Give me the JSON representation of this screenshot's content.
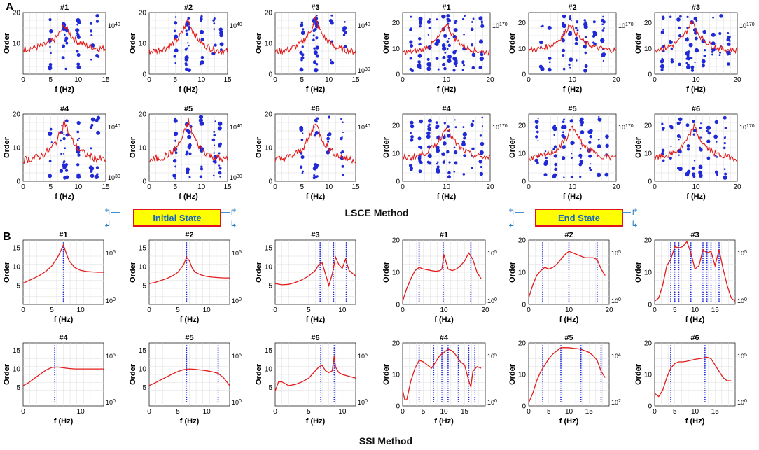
{
  "colors": {
    "model": "#1f2ad6",
    "spectrum": "#e21b1b",
    "grid": "#dcdcdc",
    "state_text": "#1565c0",
    "state_bg": "#ffff00",
    "state_border": "#e0141e"
  },
  "panel_labels": {
    "a": "A",
    "b": "B"
  },
  "methods": {
    "lsce": "LSCE Method",
    "ssi": "SSI Method"
  },
  "states": {
    "initial": "Initial State",
    "end": "End State"
  },
  "icons": [
    "arrow-up-left-icon",
    "arrow-down-left-icon",
    "arrow-up-right-icon",
    "arrow-down-right-icon"
  ],
  "chart_data": [
    {
      "id": "lsce-initial-1",
      "type": "stability-diagram",
      "title": "#1",
      "xlabel": "f (Hz)",
      "ylabel": "Order",
      "xlim": [
        0,
        15
      ],
      "ylim": [
        0,
        20
      ],
      "xticks": [
        0,
        5,
        10,
        15
      ],
      "yticks": [
        10,
        20
      ],
      "right_ticks": [
        "10^40"
      ],
      "peak_freq": 7.5,
      "base": 8,
      "peak": 16,
      "dot_columns": [
        5,
        7.4,
        7.8,
        10,
        12.5,
        13.5
      ]
    },
    {
      "id": "lsce-initial-2",
      "type": "stability-diagram",
      "title": "#2",
      "xlabel": "f (Hz)",
      "ylabel": "Order",
      "xlim": [
        0,
        15
      ],
      "ylim": [
        0,
        20
      ],
      "xticks": [
        0,
        5,
        10,
        15
      ],
      "yticks": [
        0,
        10,
        20
      ],
      "right_ticks": [
        "10^40"
      ],
      "peak_freq": 7.4,
      "base": 7,
      "peak": 18,
      "dot_columns": [
        5,
        7.2,
        7.6,
        10,
        12.5,
        13.8
      ]
    },
    {
      "id": "lsce-initial-3",
      "type": "stability-diagram",
      "title": "#3",
      "xlabel": "f (Hz)",
      "ylabel": "Order",
      "xlim": [
        0,
        15
      ],
      "ylim": [
        0,
        20
      ],
      "xticks": [
        0,
        5,
        10,
        15
      ],
      "yticks": [
        0,
        10,
        20
      ],
      "right_ticks": [
        "10^40",
        "10^30"
      ],
      "peak_freq": 7.5,
      "base": 7,
      "peak": 18,
      "dot_columns": [
        5,
        7.3,
        7.7,
        10.5,
        13
      ]
    },
    {
      "id": "lsce-end-1",
      "type": "stability-diagram",
      "title": "#1",
      "xlabel": "f (Hz)",
      "ylabel": "Order",
      "xlim": [
        0,
        20
      ],
      "ylim": [
        0,
        24
      ],
      "xticks": [
        0,
        10,
        20
      ],
      "yticks": [
        0,
        10,
        20
      ],
      "right_ticks": [
        "10^170"
      ],
      "peak_freq": 10,
      "base": 8,
      "peak": 20,
      "dot_columns": [
        2,
        4,
        6,
        8,
        9.5,
        10.5,
        12,
        14,
        16,
        18
      ]
    },
    {
      "id": "lsce-end-2",
      "type": "stability-diagram",
      "title": "#2",
      "xlabel": "f (Hz)",
      "ylabel": "Order",
      "xlim": [
        0,
        20
      ],
      "ylim": [
        0,
        24
      ],
      "xticks": [
        0,
        10,
        20
      ],
      "yticks": [
        0,
        10,
        20
      ],
      "right_ticks": [
        "10^170"
      ],
      "peak_freq": 9.5,
      "base": 9,
      "peak": 20,
      "dot_columns": [
        3,
        5,
        8,
        9.5,
        11,
        13,
        15,
        17
      ]
    },
    {
      "id": "lsce-end-3",
      "type": "stability-diagram",
      "title": "#3",
      "xlabel": "f (Hz)",
      "ylabel": "Order",
      "xlim": [
        0,
        20
      ],
      "ylim": [
        0,
        24
      ],
      "xticks": [
        0,
        10,
        20
      ],
      "yticks": [
        0,
        10,
        20
      ],
      "right_ticks": [
        "10^170"
      ],
      "peak_freq": 9,
      "base": 9,
      "peak": 21,
      "dot_columns": [
        2,
        4,
        6,
        8,
        9,
        10,
        12,
        14,
        16,
        18
      ]
    },
    {
      "id": "lsce-initial-4",
      "type": "stability-diagram",
      "title": "#4",
      "xlabel": "f (Hz)",
      "ylabel": "Order",
      "xlim": [
        0,
        15
      ],
      "ylim": [
        0,
        20
      ],
      "xticks": [
        0,
        5,
        10,
        15
      ],
      "yticks": [
        0,
        10,
        20
      ],
      "right_ticks": [
        "10^40",
        "10^30"
      ],
      "peak_freq": 7.5,
      "base": 6,
      "peak": 18,
      "dot_columns": [
        5,
        7,
        7.5,
        8,
        10,
        12.5,
        13.5
      ]
    },
    {
      "id": "lsce-initial-5",
      "type": "stability-diagram",
      "title": "#5",
      "xlabel": "f (Hz)",
      "ylabel": "Order",
      "xlim": [
        0,
        15
      ],
      "ylim": [
        0,
        20
      ],
      "xticks": [
        0,
        5,
        10,
        15
      ],
      "yticks": [
        0,
        10,
        20
      ],
      "right_ticks": [
        "10^40",
        "10^30"
      ],
      "peak_freq": 7.5,
      "base": 6,
      "peak": 18,
      "dot_columns": [
        5,
        7.3,
        7.8,
        10,
        12.5,
        13.5
      ]
    },
    {
      "id": "lsce-initial-6",
      "type": "stability-diagram",
      "title": "#6",
      "xlabel": "f (Hz)",
      "ylabel": "Order",
      "xlim": [
        0,
        15
      ],
      "ylim": [
        0,
        20
      ],
      "xticks": [
        0,
        5,
        10,
        15
      ],
      "yticks": [
        0,
        10,
        20
      ],
      "right_ticks": [
        "10^40"
      ],
      "peak_freq": 7.5,
      "base": 6,
      "peak": 18,
      "dot_columns": [
        5,
        7.3,
        7.7,
        10,
        12.5
      ]
    },
    {
      "id": "lsce-end-4",
      "type": "stability-diagram",
      "title": "#4",
      "xlabel": "f (Hz)",
      "ylabel": "Order",
      "xlim": [
        0,
        20
      ],
      "ylim": [
        0,
        24
      ],
      "xticks": [
        0,
        10,
        20
      ],
      "yticks": [
        0,
        10,
        20
      ],
      "right_ticks": [
        "10^170"
      ],
      "peak_freq": 10,
      "base": 8,
      "peak": 20,
      "dot_columns": [
        2,
        4,
        6,
        8,
        9.5,
        10.5,
        12,
        14,
        16,
        18
      ]
    },
    {
      "id": "lsce-end-5",
      "type": "stability-diagram",
      "title": "#5",
      "xlabel": "f (Hz)",
      "ylabel": "Order",
      "xlim": [
        0,
        20
      ],
      "ylim": [
        0,
        24
      ],
      "xticks": [
        0,
        10,
        20
      ],
      "yticks": [
        0,
        10,
        20
      ],
      "right_ticks": [
        "10^170"
      ],
      "peak_freq": 10,
      "base": 8,
      "peak": 20,
      "dot_columns": [
        2,
        4,
        6,
        8,
        10,
        12,
        14,
        16,
        18
      ]
    },
    {
      "id": "lsce-end-6",
      "type": "stability-diagram",
      "title": "#6",
      "xlabel": "f (Hz)",
      "ylabel": "Order",
      "xlim": [
        0,
        20
      ],
      "ylim": [
        0,
        24
      ],
      "xticks": [
        0,
        10,
        20
      ],
      "yticks": [
        0,
        10,
        20
      ],
      "right_ticks": [
        "10^170"
      ],
      "peak_freq": 9.5,
      "base": 8,
      "peak": 20,
      "dot_columns": [
        2,
        4,
        6,
        8,
        9.5,
        11,
        13,
        15,
        17
      ]
    },
    {
      "id": "ssi-initial-1",
      "type": "stability-diagram",
      "title": "#1",
      "xlabel": "f (Hz)",
      "ylabel": "Order",
      "xlim": [
        0,
        14
      ],
      "ylim": [
        0,
        17
      ],
      "xticks": [
        0,
        5,
        10
      ],
      "yticks": [
        5,
        10,
        15
      ],
      "right_ticks": [
        "10^5",
        "10^0"
      ],
      "curve_x": [
        0,
        1,
        2,
        3,
        4,
        5,
        6,
        6.5,
        7,
        7.5,
        8,
        9,
        10,
        11,
        12,
        13,
        14
      ],
      "curve_y": [
        5.6,
        6.3,
        7,
        7.8,
        8.8,
        10.2,
        12.5,
        14,
        15.7,
        13.5,
        11.5,
        9.7,
        9,
        8.7,
        8.6,
        8.5,
        8.5
      ],
      "dot_columns": [
        7
      ]
    },
    {
      "id": "ssi-initial-2",
      "type": "stability-diagram",
      "title": "#2",
      "xlabel": "f (Hz)",
      "ylabel": "Order",
      "xlim": [
        0,
        14
      ],
      "ylim": [
        0,
        17
      ],
      "xticks": [
        0,
        5,
        10
      ],
      "yticks": [
        5,
        10,
        15
      ],
      "right_ticks": [
        "10^5",
        "10^0"
      ],
      "curve_x": [
        0,
        1,
        2,
        3,
        4,
        5,
        6,
        6.5,
        7,
        7.5,
        8,
        9,
        10,
        11,
        12,
        13,
        14
      ],
      "curve_y": [
        5.5,
        5.8,
        6.3,
        6.8,
        7.5,
        8.5,
        10.5,
        12.5,
        11.5,
        9.5,
        8.5,
        7.8,
        7.4,
        7.2,
        7.1,
        7,
        7
      ],
      "dot_columns": [
        6.5
      ]
    },
    {
      "id": "ssi-initial-3",
      "type": "stability-diagram",
      "title": "#3",
      "xlabel": "f (Hz)",
      "ylabel": "Order",
      "xlim": [
        0,
        12
      ],
      "ylim": [
        0,
        17
      ],
      "xticks": [
        0,
        5,
        10
      ],
      "yticks": [
        5,
        10,
        15
      ],
      "right_ticks": [],
      "curve_x": [
        0,
        1,
        2,
        3,
        4,
        5,
        6,
        6.5,
        7,
        7.5,
        8,
        8.5,
        9,
        9.5,
        10,
        10.5,
        11,
        12
      ],
      "curve_y": [
        5.5,
        5.2,
        5.3,
        5.8,
        6.5,
        7.5,
        9,
        10.5,
        11,
        8,
        5,
        8,
        12.5,
        10.5,
        9.5,
        12,
        9,
        7.5
      ],
      "dot_columns": [
        6.7,
        8.7,
        10.6
      ]
    },
    {
      "id": "ssi-end-1",
      "type": "stability-diagram",
      "title": "#1",
      "xlabel": "f (Hz)",
      "ylabel": "Order",
      "xlim": [
        0,
        20
      ],
      "ylim": [
        0,
        20
      ],
      "xticks": [
        0,
        10,
        20
      ],
      "yticks": [
        0,
        10,
        20
      ],
      "right_ticks": [
        "10^5",
        "10^0"
      ],
      "curve_x": [
        0,
        1,
        2,
        3,
        4,
        5,
        7,
        8,
        9,
        9.5,
        10,
        11,
        12,
        13,
        14,
        15,
        16,
        17,
        18,
        19
      ],
      "curve_y": [
        1,
        5,
        8,
        10.5,
        11.5,
        11,
        10.5,
        10.3,
        10.5,
        11,
        15.5,
        11,
        10.5,
        11,
        12,
        13.5,
        16,
        14,
        10,
        8
      ],
      "dot_columns": [
        4,
        9.8,
        16.5
      ]
    },
    {
      "id": "ssi-end-2",
      "type": "stability-diagram",
      "title": "#2",
      "xlabel": "f (Hz)",
      "ylabel": "Order",
      "xlim": [
        0,
        20
      ],
      "ylim": [
        0,
        20
      ],
      "xticks": [
        0,
        10,
        20
      ],
      "yticks": [
        0,
        10,
        20
      ],
      "right_ticks": [
        "10^5",
        "10^0"
      ],
      "curve_x": [
        0,
        1,
        2,
        3,
        4,
        5,
        6,
        7,
        8,
        9,
        10,
        11,
        12,
        13,
        14,
        15,
        16,
        17,
        18,
        19
      ],
      "curve_y": [
        2,
        6,
        9,
        10.5,
        11.5,
        11,
        11.5,
        12.5,
        14,
        15.5,
        16.5,
        16,
        15.5,
        15,
        14.5,
        14.5,
        14.5,
        14,
        11,
        9
      ],
      "dot_columns": [
        3.5,
        10,
        17
      ]
    },
    {
      "id": "ssi-end-3",
      "type": "stability-diagram",
      "title": "#3",
      "xlabel": "f (Hz)",
      "ylabel": "Order",
      "xlim": [
        0,
        20
      ],
      "ylim": [
        0,
        20
      ],
      "xticks": [
        0,
        5,
        10,
        15
      ],
      "yticks": [
        0,
        10,
        20
      ],
      "right_ticks": [
        "10^5",
        "10^0"
      ],
      "curve_x": [
        0,
        1,
        2,
        3,
        4,
        5,
        6,
        7,
        8,
        9,
        10,
        11,
        12,
        13,
        14,
        15,
        16,
        17,
        18,
        19,
        20
      ],
      "curve_y": [
        1,
        2,
        6,
        12,
        14,
        18,
        17.5,
        18,
        19.5,
        16,
        11,
        12,
        17,
        16,
        16.5,
        12,
        17,
        11,
        6,
        2,
        1
      ],
      "dot_columns": [
        4,
        5,
        6,
        9,
        12,
        13,
        14,
        16
      ]
    },
    {
      "id": "ssi-initial-4",
      "type": "stability-diagram",
      "title": "#4",
      "xlabel": "f (Hz)",
      "ylabel": "Order",
      "xlim": [
        0,
        14
      ],
      "ylim": [
        0,
        17
      ],
      "xticks": [
        0,
        10
      ],
      "yticks": [
        5,
        10,
        15
      ],
      "right_ticks": [
        "10^5",
        "10^0"
      ],
      "curve_x": [
        0,
        1,
        2,
        3,
        4,
        5,
        6,
        7,
        8,
        9,
        10,
        11,
        12,
        13,
        14
      ],
      "curve_y": [
        5.5,
        6.3,
        7.5,
        8.6,
        9.7,
        10.4,
        10.5,
        10.3,
        10.1,
        10,
        10,
        10,
        10,
        10,
        10
      ],
      "dot_columns": [
        5.5
      ]
    },
    {
      "id": "ssi-initial-5",
      "type": "stability-diagram",
      "title": "#5",
      "xlabel": "f (Hz)",
      "ylabel": "Order",
      "xlim": [
        0,
        14
      ],
      "ylim": [
        0,
        17
      ],
      "xticks": [
        0,
        5,
        10
      ],
      "yticks": [
        5,
        10,
        15
      ],
      "right_ticks": [
        "10^5",
        "10^0"
      ],
      "curve_x": [
        0,
        1,
        2,
        3,
        4,
        5,
        6,
        7,
        8,
        9,
        10,
        11,
        12,
        13,
        14
      ],
      "curve_y": [
        5.5,
        6.2,
        7,
        7.8,
        8.6,
        9.3,
        9.8,
        10,
        9.9,
        9.7,
        9.5,
        9.2,
        8.8,
        7.5,
        5.5
      ],
      "dot_columns": [
        6.5,
        12
      ]
    },
    {
      "id": "ssi-initial-6",
      "type": "stability-diagram",
      "title": "#6",
      "xlabel": "f (Hz)",
      "ylabel": "Order",
      "xlim": [
        0,
        12
      ],
      "ylim": [
        0,
        17
      ],
      "xticks": [
        0,
        5,
        10
      ],
      "yticks": [
        5,
        10,
        15
      ],
      "right_ticks": [
        "10^5",
        "10^0"
      ],
      "curve_x": [
        0,
        0.5,
        1,
        2,
        3,
        4,
        5,
        6,
        6.5,
        7,
        7.5,
        8,
        8.5,
        8.8,
        9,
        9.5,
        10,
        11,
        12
      ],
      "curve_y": [
        4,
        6.5,
        6.5,
        5.5,
        5.8,
        6.5,
        7.5,
        9.5,
        10.5,
        11,
        9.5,
        9,
        9.5,
        13.5,
        10.5,
        9,
        8.5,
        8,
        7.5
      ],
      "dot_columns": [
        6.8,
        8.8
      ]
    },
    {
      "id": "ssi-end-4",
      "type": "stability-diagram",
      "title": "#4",
      "xlabel": "f (Hz)",
      "ylabel": "Order",
      "xlim": [
        0,
        20
      ],
      "ylim": [
        0,
        20
      ],
      "xticks": [
        0,
        5,
        10,
        15
      ],
      "yticks": [
        0,
        10,
        20
      ],
      "right_ticks": [
        "10^5",
        "10^0"
      ],
      "curve_x": [
        0,
        0.5,
        1,
        2,
        3,
        4,
        5,
        6,
        7,
        8,
        9,
        10,
        11,
        12,
        13,
        14,
        15,
        16,
        16.5,
        17,
        18,
        19
      ],
      "curve_y": [
        5,
        2,
        2,
        8,
        12,
        14.5,
        14,
        13,
        12,
        14,
        16,
        17,
        18,
        17.5,
        16,
        14,
        13,
        8,
        6,
        11,
        12.5,
        12
      ],
      "dot_columns": [
        4,
        7.5,
        9.5,
        11,
        13.5,
        16,
        17.5
      ]
    },
    {
      "id": "ssi-end-5",
      "type": "stability-diagram",
      "title": "#5",
      "xlabel": "f (Hz)",
      "ylabel": "Order",
      "xlim": [
        0,
        20
      ],
      "ylim": [
        0,
        20
      ],
      "xticks": [
        0,
        5,
        10,
        15
      ],
      "yticks": [
        0,
        10,
        20
      ],
      "right_ticks": [
        "10^4",
        "10^2"
      ],
      "curve_x": [
        0,
        1,
        2,
        3,
        4,
        5,
        6,
        7,
        8,
        9,
        10,
        11,
        12,
        13,
        14,
        15,
        16,
        17,
        18,
        19
      ],
      "curve_y": [
        1,
        4,
        8,
        11,
        13,
        15,
        16.5,
        17.5,
        18.5,
        18.5,
        18.5,
        18.3,
        18.2,
        18,
        17.5,
        17,
        16,
        14.5,
        11,
        9
      ],
      "dot_columns": [
        3.5,
        8,
        13,
        18
      ]
    },
    {
      "id": "ssi-end-6",
      "type": "stability-diagram",
      "title": "#6",
      "xlabel": "f (Hz)",
      "ylabel": "Order",
      "xlim": [
        0,
        20
      ],
      "ylim": [
        0,
        20
      ],
      "xticks": [
        0,
        5,
        10,
        15
      ],
      "yticks": [
        0,
        10,
        20
      ],
      "right_ticks": [
        "10^5",
        "10^0"
      ],
      "curve_x": [
        0,
        1,
        2,
        3,
        4,
        5,
        6,
        7,
        8,
        9,
        10,
        11,
        12,
        13,
        14,
        15,
        16,
        17,
        18,
        19
      ],
      "curve_y": [
        4,
        3,
        5,
        9,
        12,
        13.5,
        14,
        14,
        14.2,
        14.5,
        14.8,
        15,
        15.2,
        15.5,
        15,
        13,
        11,
        9,
        8,
        8
      ],
      "dot_columns": [
        4,
        12.5
      ]
    }
  ]
}
